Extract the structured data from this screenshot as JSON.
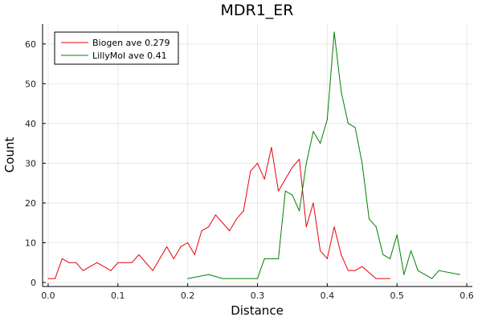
{
  "chart_data": {
    "type": "line",
    "title": "MDR1_ER",
    "xlabel": "Distance",
    "ylabel": "Count",
    "xlim": [
      -0.008,
      0.608
    ],
    "ylim": [
      -1,
      65
    ],
    "x_ticks": [
      0.0,
      0.1,
      0.2,
      0.3,
      0.4,
      0.5,
      0.6
    ],
    "x_tick_labels": [
      "0.0",
      "0.1",
      "0.2",
      "0.3",
      "0.4",
      "0.5",
      "0.6"
    ],
    "y_ticks": [
      0,
      10,
      20,
      30,
      40,
      50,
      60
    ],
    "y_tick_labels": [
      "0",
      "10",
      "20",
      "30",
      "40",
      "50",
      "60"
    ],
    "grid": true,
    "legend_position": "top-left",
    "series": [
      {
        "name": "Biogen ave 0.279",
        "color": "#e8000b",
        "x": [
          0.0,
          0.01,
          0.02,
          0.03,
          0.04,
          0.05,
          0.07,
          0.09,
          0.1,
          0.12,
          0.13,
          0.15,
          0.17,
          0.18,
          0.19,
          0.2,
          0.21,
          0.22,
          0.23,
          0.24,
          0.26,
          0.27,
          0.28,
          0.29,
          0.3,
          0.31,
          0.32,
          0.33,
          0.35,
          0.36,
          0.37,
          0.38,
          0.39,
          0.4,
          0.41,
          0.42,
          0.43,
          0.44,
          0.45,
          0.47,
          0.48,
          0.49
        ],
        "y": [
          1,
          1,
          6,
          5,
          5,
          3,
          5,
          3,
          5,
          5,
          7,
          3,
          9,
          6,
          9,
          10,
          7,
          13,
          14,
          17,
          13,
          16,
          18,
          28,
          30,
          26,
          34,
          23,
          29,
          31,
          14,
          20,
          8,
          6,
          14,
          7,
          3,
          3,
          4,
          1,
          1,
          1
        ]
      },
      {
        "name": "LillyMol ave 0.41",
        "color": "#008000",
        "x": [
          0.2,
          0.23,
          0.25,
          0.3,
          0.31,
          0.33,
          0.34,
          0.35,
          0.36,
          0.37,
          0.38,
          0.39,
          0.4,
          0.41,
          0.42,
          0.43,
          0.44,
          0.45,
          0.46,
          0.47,
          0.48,
          0.49,
          0.5,
          0.51,
          0.52,
          0.53,
          0.55,
          0.56,
          0.59
        ],
        "y": [
          1,
          2,
          1,
          1,
          6,
          6,
          23,
          22,
          18,
          30,
          38,
          35,
          41,
          63,
          48,
          40,
          39,
          30,
          16,
          14,
          7,
          6,
          12,
          2,
          8,
          3,
          1,
          3,
          2
        ]
      }
    ]
  }
}
